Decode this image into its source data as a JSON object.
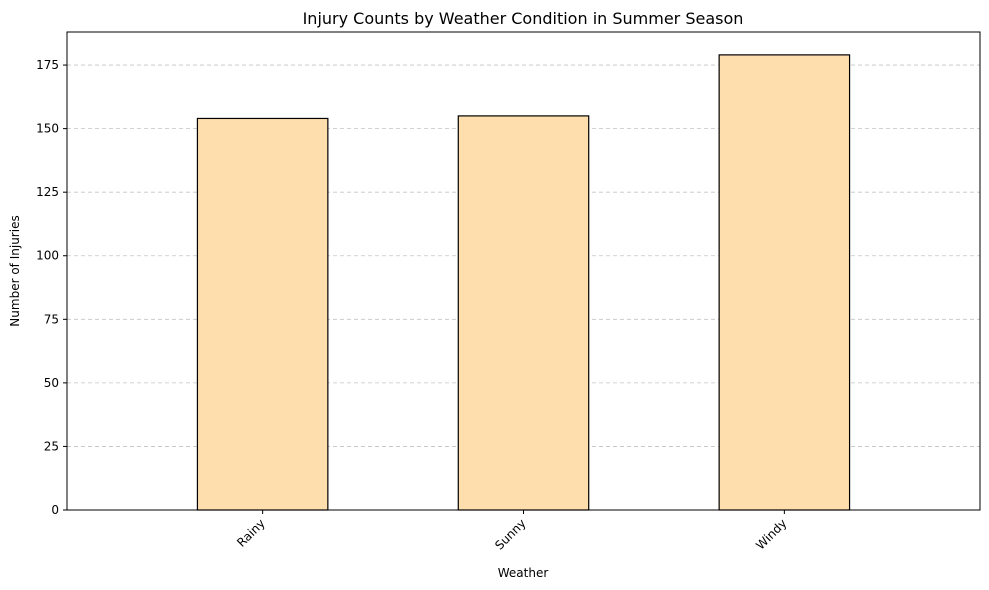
{
  "chart_data": {
    "type": "bar",
    "title": "Injury Counts by Weather Condition in Summer Season",
    "xlabel": "Weather",
    "ylabel": "Number of Injuries",
    "categories": [
      "Rainy",
      "Sunny",
      "Windy"
    ],
    "values": [
      154,
      155,
      179
    ],
    "ylim": [
      0,
      188
    ],
    "yticks": [
      0,
      25,
      50,
      75,
      100,
      125,
      150,
      175
    ],
    "grid": "y-dashed",
    "colors": {
      "bar_fill": "#ffdeae",
      "bar_edge": "#000000"
    }
  }
}
